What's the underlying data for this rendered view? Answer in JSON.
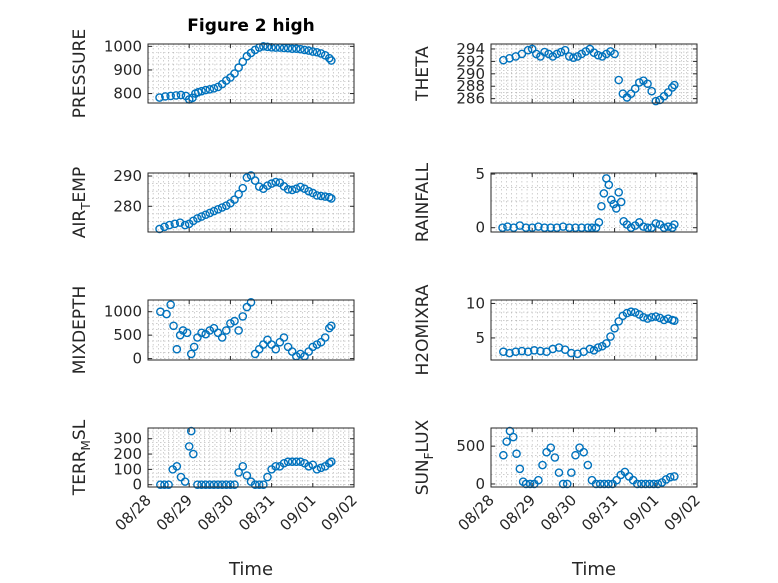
{
  "figure": {
    "title": "Figure 2 high",
    "xlabel": "Time",
    "marker_color": "#0072bd",
    "x_ticks": [
      "08/28",
      "08/29",
      "08/30",
      "08/31",
      "09/01",
      "09/02"
    ]
  },
  "chart_data": [
    {
      "type": "scatter",
      "ylabel": "PRESSURE",
      "ylim": [
        760,
        1010
      ],
      "yticks": [
        800,
        900,
        1000
      ],
      "grid": true,
      "x": [
        0.28,
        0.42,
        0.55,
        0.68,
        0.8,
        0.92,
        1.0,
        1.08,
        1.15,
        1.22,
        1.3,
        1.4,
        1.5,
        1.6,
        1.7,
        1.8,
        1.9,
        2.0,
        2.1,
        2.2,
        2.3,
        2.4,
        2.5,
        2.6,
        2.7,
        2.8,
        2.9,
        3.0,
        3.1,
        3.2,
        3.3,
        3.4,
        3.5,
        3.6,
        3.7,
        3.8,
        3.9,
        4.0,
        4.1,
        4.2,
        4.3,
        4.4,
        4.45
      ],
      "y": [
        783,
        788,
        790,
        792,
        794,
        790,
        775,
        782,
        800,
        806,
        810,
        815,
        818,
        822,
        828,
        840,
        855,
        868,
        885,
        910,
        935,
        958,
        972,
        985,
        995,
        1000,
        998,
        996,
        995,
        995,
        993,
        992,
        990,
        990,
        988,
        985,
        982,
        978,
        975,
        970,
        962,
        950,
        940
      ]
    },
    {
      "type": "scatter",
      "ylabel": "THETA",
      "ylim": [
        285.3,
        294.8
      ],
      "yticks": [
        286,
        288,
        290,
        292,
        294
      ],
      "grid": true,
      "x": [
        0.3,
        0.45,
        0.6,
        0.75,
        0.9,
        1.0,
        1.1,
        1.2,
        1.3,
        1.4,
        1.5,
        1.6,
        1.7,
        1.8,
        1.9,
        2.0,
        2.1,
        2.2,
        2.3,
        2.4,
        2.5,
        2.6,
        2.7,
        2.8,
        2.9,
        3.0,
        3.1,
        3.2,
        3.3,
        3.4,
        3.5,
        3.6,
        3.7,
        3.8,
        3.9,
        4.0,
        4.1,
        4.2,
        4.3,
        4.4,
        4.45
      ],
      "y": [
        292.2,
        292.5,
        292.8,
        293.2,
        293.8,
        294.0,
        293.2,
        292.8,
        293.5,
        293.2,
        292.8,
        293.2,
        293.5,
        293.8,
        292.8,
        292.6,
        292.8,
        293.2,
        293.6,
        294.0,
        293.4,
        293.0,
        292.8,
        293.2,
        293.6,
        293.2,
        289.0,
        286.8,
        286.2,
        286.8,
        287.6,
        288.6,
        288.9,
        288.4,
        287.2,
        285.6,
        285.8,
        286.4,
        287.0,
        287.8,
        288.2
      ]
    },
    {
      "type": "scatter",
      "ylabel": "AIR_TEMP",
      "ylim": [
        271.5,
        291
      ],
      "yticks": [
        280,
        290
      ],
      "grid": true,
      "x": [
        0.28,
        0.4,
        0.52,
        0.65,
        0.78,
        0.9,
        1.0,
        1.1,
        1.2,
        1.3,
        1.4,
        1.5,
        1.6,
        1.7,
        1.8,
        1.9,
        2.0,
        2.1,
        2.2,
        2.3,
        2.4,
        2.5,
        2.6,
        2.7,
        2.8,
        2.9,
        3.0,
        3.1,
        3.2,
        3.3,
        3.4,
        3.5,
        3.6,
        3.7,
        3.8,
        3.9,
        4.0,
        4.1,
        4.2,
        4.3,
        4.4,
        4.45
      ],
      "y": [
        272.5,
        273.2,
        273.8,
        274.2,
        274.6,
        273.8,
        274.2,
        275.2,
        276.0,
        276.6,
        277.2,
        277.8,
        278.4,
        279.0,
        279.6,
        280.2,
        281.0,
        282.2,
        284.0,
        286.0,
        289.5,
        290.2,
        288.5,
        286.5,
        285.8,
        286.8,
        287.5,
        288.0,
        287.8,
        286.6,
        285.6,
        285.4,
        285.8,
        286.4,
        285.8,
        285.0,
        284.4,
        283.6,
        283.4,
        283.2,
        283.0,
        282.6
      ]
    },
    {
      "type": "scatter",
      "ylabel": "RAINFALL",
      "ylim": [
        -0.4,
        5.1
      ],
      "yticks": [
        0,
        5
      ],
      "grid": true,
      "x": [
        0.28,
        0.4,
        0.55,
        0.7,
        0.85,
        1.0,
        1.15,
        1.3,
        1.45,
        1.6,
        1.75,
        1.9,
        2.05,
        2.2,
        2.35,
        2.45,
        2.55,
        2.62,
        2.68,
        2.74,
        2.8,
        2.86,
        2.92,
        2.98,
        3.04,
        3.1,
        3.16,
        3.22,
        3.3,
        3.4,
        3.5,
        3.6,
        3.7,
        3.8,
        3.9,
        4.0,
        4.1,
        4.2,
        4.3,
        4.4,
        4.45
      ],
      "y": [
        0,
        0.1,
        0,
        0.2,
        0,
        0,
        0.1,
        0,
        0,
        0,
        0.1,
        0,
        0,
        0,
        0,
        0,
        0,
        0.5,
        2.0,
        3.2,
        4.6,
        4.0,
        2.6,
        2.2,
        1.8,
        3.3,
        2.4,
        0.6,
        0.3,
        0,
        0.2,
        0.5,
        0.1,
        0,
        0,
        0.4,
        0.3,
        0,
        0.1,
        0,
        0.3
      ]
    },
    {
      "type": "scatter",
      "ylabel": "MIXDEPTH",
      "ylim": [
        -30,
        1250
      ],
      "yticks": [
        0,
        500,
        1000
      ],
      "grid": true,
      "x": [
        0.3,
        0.45,
        0.55,
        0.62,
        0.7,
        0.78,
        0.85,
        0.95,
        1.05,
        1.12,
        1.2,
        1.3,
        1.4,
        1.5,
        1.6,
        1.7,
        1.8,
        1.9,
        2.0,
        2.1,
        2.2,
        2.3,
        2.4,
        2.5,
        2.6,
        2.7,
        2.8,
        2.9,
        3.0,
        3.1,
        3.2,
        3.3,
        3.4,
        3.5,
        3.6,
        3.7,
        3.8,
        3.9,
        4.0,
        4.1,
        4.2,
        4.3,
        4.4,
        4.45
      ],
      "y": [
        1000,
        950,
        1150,
        700,
        200,
        500,
        600,
        550,
        100,
        250,
        450,
        550,
        520,
        600,
        650,
        550,
        450,
        600,
        750,
        800,
        600,
        900,
        1100,
        1200,
        100,
        200,
        300,
        400,
        300,
        200,
        350,
        450,
        250,
        150,
        50,
        100,
        50,
        150,
        250,
        300,
        350,
        450,
        650,
        700
      ]
    },
    {
      "type": "scatter",
      "ylabel": "H2OMIXRA",
      "ylim": [
        1.8,
        10.5
      ],
      "yticks": [
        5,
        10
      ],
      "grid": true,
      "x": [
        0.3,
        0.45,
        0.6,
        0.75,
        0.9,
        1.05,
        1.2,
        1.35,
        1.5,
        1.65,
        1.8,
        1.95,
        2.1,
        2.25,
        2.4,
        2.5,
        2.6,
        2.7,
        2.8,
        2.9,
        3.0,
        3.1,
        3.2,
        3.3,
        3.4,
        3.5,
        3.6,
        3.7,
        3.8,
        3.9,
        4.0,
        4.1,
        4.2,
        4.3,
        4.4,
        4.45
      ],
      "y": [
        3.0,
        2.8,
        3.0,
        3.1,
        3.0,
        3.2,
        3.1,
        3.0,
        3.4,
        3.6,
        3.3,
        2.8,
        2.7,
        3.0,
        3.4,
        3.2,
        3.6,
        3.8,
        4.2,
        5.2,
        6.4,
        7.4,
        8.2,
        8.6,
        8.8,
        8.7,
        8.4,
        8.0,
        7.8,
        8.0,
        8.1,
        7.9,
        7.6,
        7.8,
        7.6,
        7.5
      ]
    },
    {
      "type": "scatter",
      "ylabel": "TERR_MSL",
      "ylim": [
        -15,
        370
      ],
      "yticks": [
        0,
        100,
        200,
        300
      ],
      "grid": true,
      "x": [
        0.3,
        0.4,
        0.5,
        0.6,
        0.7,
        0.8,
        0.9,
        1.0,
        1.05,
        1.1,
        1.2,
        1.3,
        1.4,
        1.5,
        1.6,
        1.7,
        1.8,
        1.9,
        2.0,
        2.1,
        2.2,
        2.3,
        2.4,
        2.5,
        2.6,
        2.7,
        2.8,
        2.9,
        3.0,
        3.1,
        3.2,
        3.3,
        3.4,
        3.5,
        3.6,
        3.7,
        3.8,
        3.9,
        4.0,
        4.1,
        4.2,
        4.3,
        4.4,
        4.45
      ],
      "y": [
        0,
        0,
        0,
        100,
        120,
        50,
        20,
        250,
        350,
        200,
        0,
        0,
        0,
        0,
        0,
        0,
        0,
        0,
        0,
        0,
        80,
        120,
        60,
        20,
        0,
        0,
        0,
        50,
        100,
        120,
        120,
        140,
        150,
        150,
        150,
        150,
        140,
        120,
        130,
        100,
        110,
        120,
        140,
        150
      ]
    },
    {
      "type": "scatter",
      "ylabel": "SUN_FLUX",
      "ylim": [
        -40,
        740
      ],
      "yticks": [
        0,
        500
      ],
      "grid": true,
      "x": [
        0.3,
        0.38,
        0.46,
        0.54,
        0.62,
        0.7,
        0.78,
        0.85,
        0.95,
        1.05,
        1.15,
        1.25,
        1.35,
        1.45,
        1.55,
        1.65,
        1.75,
        1.85,
        1.95,
        2.05,
        2.15,
        2.25,
        2.35,
        2.45,
        2.55,
        2.65,
        2.75,
        2.85,
        2.95,
        3.05,
        3.15,
        3.25,
        3.35,
        3.45,
        3.55,
        3.65,
        3.75,
        3.85,
        3.95,
        4.05,
        4.15,
        4.25,
        4.35,
        4.45
      ],
      "y": [
        380,
        560,
        700,
        620,
        400,
        200,
        30,
        0,
        0,
        0,
        50,
        250,
        420,
        480,
        350,
        150,
        0,
        0,
        150,
        380,
        480,
        420,
        250,
        50,
        0,
        0,
        0,
        0,
        0,
        50,
        120,
        160,
        100,
        50,
        0,
        0,
        0,
        0,
        0,
        0,
        20,
        60,
        90,
        100
      ]
    }
  ]
}
